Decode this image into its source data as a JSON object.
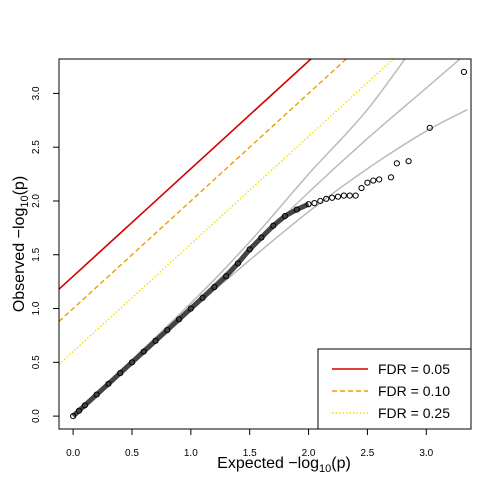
{
  "chart_data": {
    "type": "scatter",
    "title": "",
    "xlabel": {
      "prefix": "Expected  −log",
      "sub": "10",
      "suffix": "(p)"
    },
    "ylabel": {
      "prefix": "Observed  −log",
      "sub": "10",
      "suffix": "(p)"
    },
    "xlim": [
      -0.12,
      3.38
    ],
    "ylim": [
      -0.12,
      3.32
    ],
    "x_ticks": [
      0.0,
      0.5,
      1.0,
      1.5,
      2.0,
      2.5,
      3.0
    ],
    "x_tick_labels": [
      "0.0",
      "0.5",
      "1.0",
      "1.5",
      "2.0",
      "2.5",
      "3.0"
    ],
    "y_ticks": [
      0.0,
      0.5,
      1.0,
      1.5,
      2.0,
      2.5,
      3.0
    ],
    "y_tick_labels": [
      "0.0",
      "0.5",
      "1.0",
      "1.5",
      "2.0",
      "2.5",
      "3.0"
    ],
    "grid": false,
    "legend_position": "bottom-right",
    "legend": [
      {
        "label": "FDR = 0.05",
        "color": "#d40000",
        "dash": "solid"
      },
      {
        "label": "FDR = 0.10",
        "color": "#e8a000",
        "dash": "dashed"
      },
      {
        "label": "FDR = 0.25",
        "color": "#f0e000",
        "dash": "dotted"
      }
    ],
    "fdr_lines": [
      {
        "name": "FDR = 0.05",
        "intercept": 1.3,
        "slope": 1.0
      },
      {
        "name": "FDR = 0.10",
        "intercept": 1.0,
        "slope": 1.0
      },
      {
        "name": "FDR = 0.25",
        "intercept": 0.6,
        "slope": 1.0
      }
    ],
    "band_color": "#bbbbbb",
    "band_lines": [
      {
        "name": "outer-upper",
        "x": [
          0,
          1.0,
          1.5,
          2.0,
          2.5,
          3.0
        ],
        "y": [
          0,
          1.05,
          1.62,
          2.25,
          2.85,
          3.6
        ]
      },
      {
        "name": "inner-upper",
        "x": [
          0,
          1.0,
          1.5,
          2.0,
          2.5,
          3.0,
          3.35
        ],
        "y": [
          0,
          1.02,
          1.55,
          2.08,
          2.58,
          3.05,
          3.38
        ]
      },
      {
        "name": "inner-lower",
        "x": [
          0,
          1.0,
          1.5,
          2.0,
          2.5,
          3.0,
          3.35
        ],
        "y": [
          0,
          0.98,
          1.45,
          1.9,
          2.3,
          2.65,
          2.85
        ]
      }
    ],
    "series": [
      {
        "type": "scatter",
        "x": [
          0.0,
          0.05,
          0.1,
          0.2,
          0.3,
          0.4,
          0.5,
          0.6,
          0.7,
          0.8,
          0.9,
          1.0,
          1.1,
          1.2,
          1.3,
          1.4,
          1.5,
          1.6,
          1.7,
          1.8,
          1.9,
          2.0,
          2.05,
          2.1,
          2.15,
          2.2,
          2.25,
          2.3,
          2.35,
          2.4,
          2.45,
          2.5,
          2.55,
          2.6,
          2.7,
          2.75,
          2.85,
          3.03,
          3.32
        ],
        "y": [
          0.0,
          0.05,
          0.1,
          0.2,
          0.3,
          0.4,
          0.5,
          0.6,
          0.7,
          0.8,
          0.9,
          1.0,
          1.1,
          1.2,
          1.3,
          1.42,
          1.55,
          1.66,
          1.77,
          1.86,
          1.92,
          1.97,
          1.98,
          2.0,
          2.02,
          2.03,
          2.04,
          2.05,
          2.05,
          2.05,
          2.12,
          2.17,
          2.19,
          2.2,
          2.22,
          2.35,
          2.37,
          2.68,
          3.2
        ]
      }
    ]
  }
}
